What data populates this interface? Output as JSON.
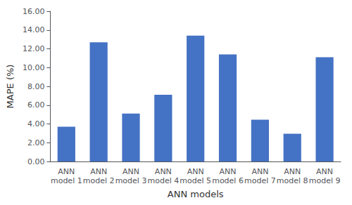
{
  "chart_data": {
    "type": "bar",
    "xlabel": "ANN models",
    "ylabel": "MAPE (%)",
    "categories": [
      "ANN\nmodel 1",
      "ANN\nmodel 2",
      "ANN\nmodel 3",
      "ANN\nmodel 4",
      "ANN\nmodel 5",
      "ANN\nmodel 6",
      "ANN\nmodel 7",
      "ANN\nmodel 8",
      "ANN\nmodel 9"
    ],
    "values": [
      3.7,
      12.7,
      5.1,
      7.1,
      13.4,
      11.4,
      4.45,
      2.95,
      11.1
    ],
    "color": "#4472C4",
    "ylim": [
      0,
      16.0
    ],
    "yticks": [
      {
        "value": 0,
        "label": "0.00"
      },
      {
        "value": 2,
        "label": "2.00"
      },
      {
        "value": 4,
        "label": "4.00"
      },
      {
        "value": 6,
        "label": "6.00"
      },
      {
        "value": 8,
        "label": "8.00"
      },
      {
        "value": 10,
        "label": "10.00"
      },
      {
        "value": 12,
        "label": "12.00"
      },
      {
        "value": 14,
        "label": "14.00"
      },
      {
        "value": 16,
        "label": "16.00"
      }
    ],
    "grid": false
  }
}
